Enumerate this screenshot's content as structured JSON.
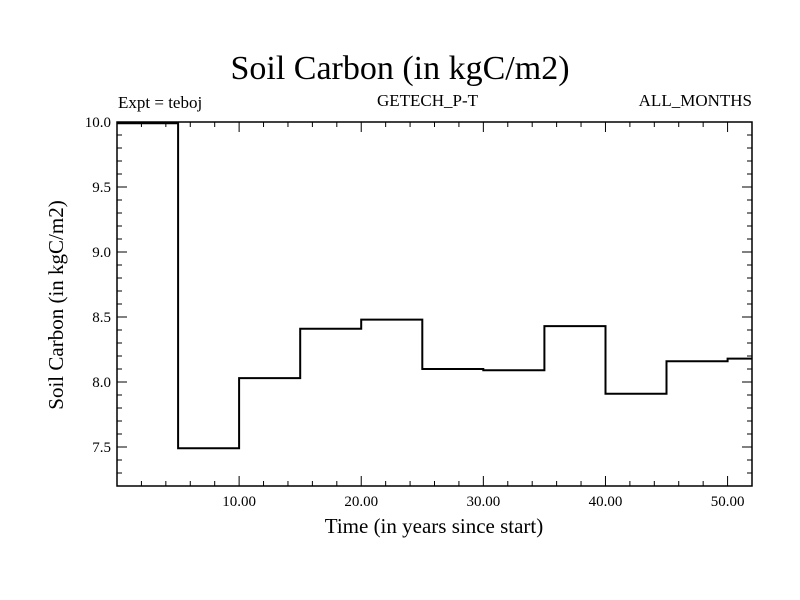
{
  "chart_data": {
    "type": "line",
    "title": "Soil Carbon (in kgC/m2)",
    "subtitle_left": "Expt = teboj",
    "subtitle_center": "GETECH_P-T",
    "subtitle_right": "ALL_MONTHS",
    "xlabel": "Time (in years since start)",
    "ylabel": "Soil Carbon (in kgC/m2)",
    "xlim": [
      0,
      52
    ],
    "ylim": [
      7.2,
      10.0
    ],
    "x_ticks": [
      10,
      20,
      30,
      40,
      50
    ],
    "x_tick_labels": [
      "10.00",
      "20.00",
      "30.00",
      "40.00",
      "50.00"
    ],
    "y_ticks": [
      7.5,
      8.0,
      8.5,
      9.0,
      9.5,
      10.0
    ],
    "y_tick_labels": [
      "7.5",
      "8.0",
      "8.5",
      "9.0",
      "9.5",
      "10.0"
    ],
    "line_style": "step",
    "series": [
      {
        "color": "#000000",
        "x": [
          0,
          5,
          5,
          10,
          10,
          15,
          15,
          20,
          20,
          25,
          25,
          30,
          30,
          35,
          35,
          40,
          40,
          45,
          45,
          50,
          50,
          52
        ],
        "y": [
          9.99,
          9.99,
          7.49,
          7.49,
          8.03,
          8.03,
          8.41,
          8.41,
          8.48,
          8.48,
          8.1,
          8.1,
          8.09,
          8.09,
          8.43,
          8.43,
          7.91,
          7.91,
          8.16,
          8.16,
          8.18,
          8.18
        ]
      }
    ]
  }
}
